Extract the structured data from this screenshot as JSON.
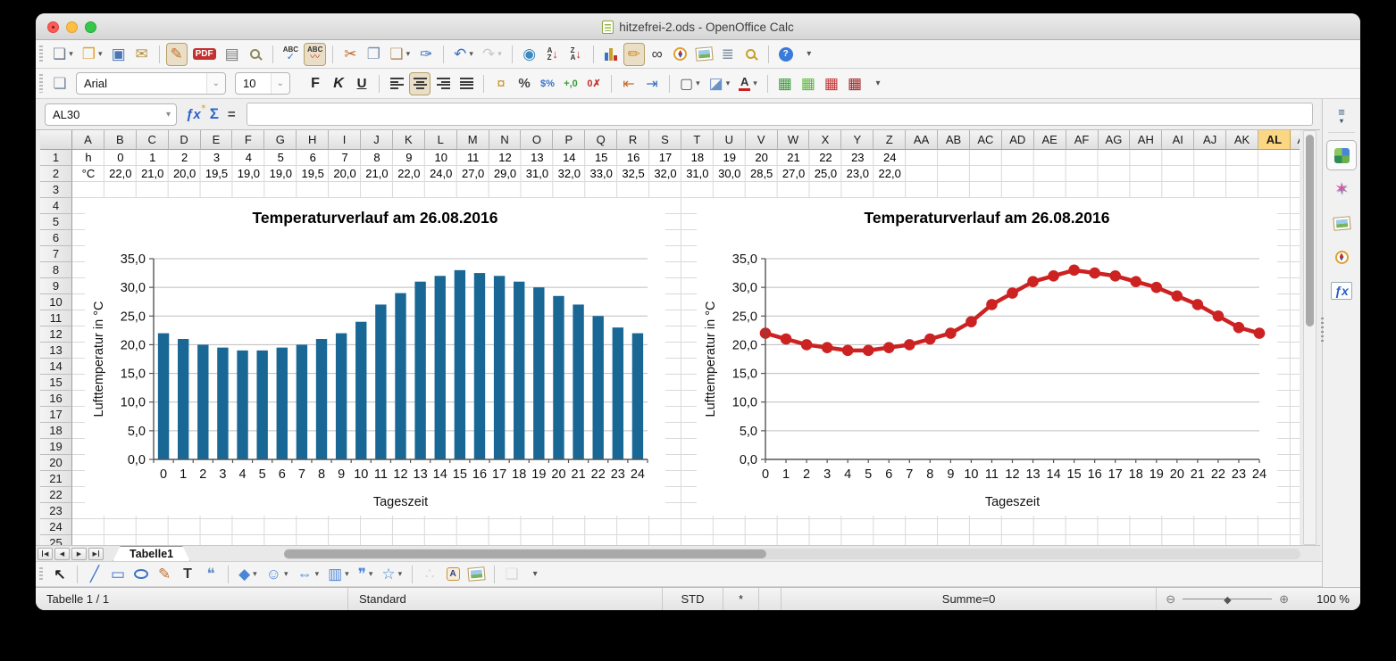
{
  "window": {
    "title": "hitzefrei-2.ods - OpenOffice Calc"
  },
  "colors": {
    "selected_column_bg": "#FBD783",
    "chart_bar": "#186795",
    "chart_line": "#CC2222",
    "traffic_close": "#FC5B57",
    "traffic_minimize": "#FDBE41",
    "traffic_zoom": "#34C84A"
  },
  "toolbar_standard": [
    {
      "name": "new-document-button",
      "icon": "new-document-icon",
      "kind": "glyph",
      "glyph": "❏",
      "color": "#6a7a8a",
      "dropdown": true
    },
    {
      "name": "open-button",
      "icon": "open-folder-icon",
      "kind": "glyph",
      "glyph": "❒",
      "color": "#e2a33a",
      "dropdown": true
    },
    {
      "name": "save-button",
      "icon": "save-floppy-icon",
      "kind": "glyph",
      "glyph": "▣",
      "color": "#4a76b8"
    },
    {
      "name": "email-button",
      "icon": "email-icon",
      "kind": "glyph",
      "glyph": "✉",
      "color": "#b8923a"
    },
    {
      "sep": true
    },
    {
      "name": "edit-mode-button",
      "icon": "edit-pencil-icon",
      "kind": "glyph",
      "glyph": "✎",
      "color": "#c07030",
      "toggled": true
    },
    {
      "name": "export-pdf-button",
      "icon": "pdf-icon",
      "kind": "chip",
      "text": "PDF",
      "bg": "#c43030",
      "color": "#ffffff"
    },
    {
      "name": "print-button",
      "icon": "printer-icon",
      "kind": "glyph",
      "glyph": "▤",
      "color": "#7a7a7a"
    },
    {
      "name": "print-preview-button",
      "icon": "print-preview-icon",
      "kind": "mag",
      "color": "#8a8a5a"
    },
    {
      "sep": true
    },
    {
      "name": "spellcheck-button",
      "icon": "spellcheck-icon",
      "kind": "abc",
      "label": "ABC",
      "mark": "✓",
      "markcolor": "#2a7ac8"
    },
    {
      "name": "auto-spellcheck-button",
      "icon": "auto-spellcheck-icon",
      "kind": "abc",
      "label": "ABC",
      "mark": "〰",
      "markcolor": "#c43030",
      "toggled": true
    },
    {
      "sep": true
    },
    {
      "name": "cut-button",
      "icon": "scissors-icon",
      "kind": "glyph",
      "glyph": "✂",
      "color": "#c06a2a"
    },
    {
      "name": "copy-button",
      "icon": "copy-icon",
      "kind": "glyph",
      "glyph": "❐",
      "color": "#7a90b0"
    },
    {
      "name": "paste-button",
      "icon": "clipboard-icon",
      "kind": "glyph",
      "glyph": "❑",
      "color": "#b09060",
      "dropdown": true
    },
    {
      "name": "format-paintbrush-button",
      "icon": "paintbrush-icon",
      "kind": "glyph",
      "glyph": "✑",
      "color": "#3a72c4"
    },
    {
      "sep": true
    },
    {
      "name": "undo-button",
      "icon": "undo-arrow-icon",
      "kind": "glyph",
      "glyph": "↶",
      "color": "#3a72c4",
      "dropdown": true
    },
    {
      "name": "redo-button",
      "icon": "redo-arrow-icon",
      "kind": "glyph",
      "glyph": "↷",
      "color": "#777777",
      "dropdown": true,
      "disabled": true
    },
    {
      "sep": true
    },
    {
      "name": "hyperlink-button",
      "icon": "globe-icon",
      "kind": "glyph",
      "glyph": "◉",
      "color": "#3a8ac0"
    },
    {
      "name": "sort-ascending-button",
      "icon": "sort-ascending-icon",
      "kind": "sort",
      "letters": [
        "A",
        "Z"
      ]
    },
    {
      "name": "sort-descending-button",
      "icon": "sort-descending-icon",
      "kind": "sort",
      "letters": [
        "Z",
        "A"
      ]
    },
    {
      "sep": true
    },
    {
      "name": "insert-chart-button",
      "icon": "chart-icon",
      "kind": "bars"
    },
    {
      "name": "show-draw-functions-button",
      "icon": "draw-pencil-icon",
      "kind": "glyph",
      "glyph": "✏",
      "color": "#d08a2a",
      "toggled": true
    },
    {
      "name": "find-replace-button",
      "icon": "binoculars-icon",
      "kind": "glyph",
      "glyph": "∞",
      "color": "#3a3a3a"
    },
    {
      "name": "navigator-button",
      "icon": "compass-icon",
      "kind": "compass"
    },
    {
      "name": "gallery-button",
      "icon": "gallery-icon",
      "kind": "photo"
    },
    {
      "name": "data-sources-button",
      "icon": "database-icon",
      "kind": "glyph",
      "glyph": "≣",
      "color": "#8090a0"
    },
    {
      "name": "zoom-button",
      "icon": "magnifier-icon",
      "kind": "mag",
      "color": "#c8a030"
    },
    {
      "sep": true
    },
    {
      "name": "help-button",
      "icon": "help-icon",
      "kind": "chip",
      "text": "?",
      "bg": "#3a7ad8",
      "color": "#ffffff",
      "round": true
    },
    {
      "name": "toolbar-overflow-button",
      "icon": "chevron-down-icon",
      "kind": "text",
      "text": "▾",
      "color": "#555555",
      "size": 10
    }
  ],
  "toolbar_formatting": [
    {
      "name": "styles-button",
      "icon": "stylist-icon",
      "kind": "glyph",
      "glyph": "❏",
      "color": "#7a8aa0"
    },
    {
      "name": "font-name-combo",
      "kind": "combo",
      "value": "Arial",
      "width": 168
    },
    {
      "name": "font-size-combo",
      "kind": "combo",
      "value": "10",
      "width": 62
    },
    {
      "gap": 10
    },
    {
      "name": "bold-button",
      "icon": "bold-icon",
      "kind": "text",
      "text": "F",
      "color": "#222222",
      "size": 16,
      "bold": true
    },
    {
      "name": "italic-button",
      "icon": "italic-icon",
      "kind": "text",
      "text": "K",
      "color": "#222222",
      "size": 16,
      "bold": true,
      "italic": true
    },
    {
      "name": "underline-button",
      "icon": "underline-icon",
      "kind": "text",
      "text": "U",
      "color": "#222222",
      "size": 15,
      "bold": true,
      "underline": true
    },
    {
      "sep": true
    },
    {
      "name": "align-left-button",
      "icon": "align-left-icon",
      "kind": "align",
      "variant": "left"
    },
    {
      "name": "align-center-button",
      "icon": "align-center-icon",
      "kind": "align",
      "variant": "center",
      "toggled": true
    },
    {
      "name": "align-right-button",
      "icon": "align-right-icon",
      "kind": "align",
      "variant": "right"
    },
    {
      "name": "align-justify-button",
      "icon": "align-justify-icon",
      "kind": "align",
      "variant": "justify"
    },
    {
      "sep": true
    },
    {
      "name": "currency-format-button",
      "icon": "currency-icon",
      "kind": "glyph",
      "glyph": "¤",
      "color": "#c8962a"
    },
    {
      "name": "percent-format-button",
      "icon": "percent-icon",
      "kind": "text",
      "text": "%",
      "color": "#444444",
      "size": 15,
      "bold": true
    },
    {
      "name": "standard-format-button",
      "icon": "standard-format-icon",
      "kind": "text",
      "text": "$%",
      "color": "#3a72c4",
      "size": 11,
      "bold": true
    },
    {
      "name": "add-decimal-button",
      "icon": "add-decimal-icon",
      "kind": "text",
      "text": "+,0",
      "color": "#3a9a3a",
      "size": 11,
      "bold": true
    },
    {
      "name": "delete-decimal-button",
      "icon": "delete-decimal-icon",
      "kind": "text",
      "text": "0✗",
      "color": "#c43030",
      "size": 11,
      "bold": true
    },
    {
      "sep": true
    },
    {
      "name": "decrease-indent-button",
      "icon": "decrease-indent-icon",
      "kind": "text",
      "text": "⇤",
      "color": "#c06a2a",
      "size": 16
    },
    {
      "name": "increase-indent-button",
      "icon": "increase-indent-icon",
      "kind": "text",
      "text": "⇥",
      "color": "#3a72c4",
      "size": 16
    },
    {
      "sep": true
    },
    {
      "name": "borders-button",
      "icon": "borders-icon",
      "kind": "text",
      "text": "▢",
      "color": "#555555",
      "size": 16,
      "dropdown": true
    },
    {
      "name": "background-color-button",
      "icon": "paint-bucket-icon",
      "kind": "glyph",
      "glyph": "◪",
      "color": "#6a92c8",
      "dropdown": true
    },
    {
      "name": "font-color-button",
      "icon": "font-color-icon",
      "kind": "underbar",
      "text": "A",
      "bar": "#cc2020",
      "dropdown": true
    },
    {
      "sep": true
    },
    {
      "name": "insert-row-button",
      "icon": "insert-row-icon",
      "kind": "glyph",
      "glyph": "▦",
      "color": "#3a9a3a"
    },
    {
      "name": "insert-column-button",
      "icon": "insert-column-icon",
      "kind": "glyph",
      "glyph": "▦",
      "color": "#58b838"
    },
    {
      "name": "delete-row-button",
      "icon": "delete-row-icon",
      "kind": "glyph",
      "glyph": "▦",
      "color": "#c43030"
    },
    {
      "name": "delete-column-button",
      "icon": "delete-column-icon",
      "kind": "glyph",
      "glyph": "▦",
      "color": "#a02020"
    },
    {
      "name": "toolbar-overflow-button",
      "icon": "chevron-down-icon",
      "kind": "text",
      "text": "▾",
      "color": "#555555",
      "size": 10
    }
  ],
  "toolbar_drawing": [
    {
      "name": "select-button",
      "icon": "cursor-arrow-icon",
      "kind": "text",
      "text": "↖",
      "color": "#222222",
      "size": 16,
      "bold": true
    },
    {
      "sep": true
    },
    {
      "name": "line-button",
      "icon": "line-icon",
      "kind": "glyph",
      "glyph": "╱",
      "color": "#3a72c4"
    },
    {
      "name": "rectangle-button",
      "icon": "rectangle-icon",
      "kind": "glyph",
      "glyph": "▭",
      "color": "#3a72c4"
    },
    {
      "name": "ellipse-button",
      "icon": "ellipse-icon",
      "kind": "ellipse"
    },
    {
      "name": "freeform-button",
      "icon": "freeform-pencil-icon",
      "kind": "glyph",
      "glyph": "✎",
      "color": "#c07030"
    },
    {
      "name": "text-button",
      "icon": "text-icon",
      "kind": "text",
      "text": "T",
      "color": "#333333",
      "size": 16,
      "bold": true
    },
    {
      "name": "callout-button",
      "icon": "callout-icon",
      "kind": "glyph",
      "glyph": "❝",
      "color": "#6a92c8"
    },
    {
      "sep": true
    },
    {
      "name": "basic-shapes-button",
      "icon": "diamond-shape-icon",
      "kind": "glyph",
      "glyph": "◆",
      "color": "#4a86d8",
      "dropdown": true
    },
    {
      "name": "symbol-shapes-button",
      "icon": "smiley-icon",
      "kind": "glyph",
      "glyph": "☺",
      "color": "#4a86d8",
      "dropdown": true
    },
    {
      "name": "block-arrows-button",
      "icon": "block-arrow-icon",
      "kind": "glyph",
      "glyph": "⇔",
      "color": "#4a86d8",
      "dropdown": true
    },
    {
      "name": "flowchart-button",
      "icon": "flowchart-icon",
      "kind": "glyph",
      "glyph": "▥",
      "color": "#4a86d8",
      "dropdown": true
    },
    {
      "name": "callouts-button",
      "icon": "speech-bubble-icon",
      "kind": "glyph",
      "glyph": "❞",
      "color": "#4a86d8",
      "dropdown": true
    },
    {
      "name": "stars-button",
      "icon": "star-icon",
      "kind": "glyph",
      "glyph": "☆",
      "color": "#4a86d8",
      "dropdown": true
    },
    {
      "sep": true
    },
    {
      "name": "edit-points-button",
      "icon": "points-icon",
      "kind": "glyph",
      "glyph": "∴",
      "color": "#999999",
      "disabled": true
    },
    {
      "name": "fontwork-button",
      "icon": "fontwork-icon",
      "kind": "chip",
      "text": "A",
      "bg": "#f8edd8",
      "color": "#28408a",
      "border": "#c89038"
    },
    {
      "name": "insert-picture-button",
      "icon": "picture-icon",
      "kind": "photo"
    },
    {
      "sep": true
    },
    {
      "name": "extrusion-button",
      "icon": "extrusion-icon",
      "kind": "glyph",
      "glyph": "❑",
      "color": "#aaaaaa",
      "disabled": true
    },
    {
      "name": "toolbar-overflow-button",
      "icon": "chevron-down-icon",
      "kind": "text",
      "text": "▾",
      "color": "#555555",
      "size": 10
    }
  ],
  "formula_bar": {
    "cell_reference": "AL30",
    "name_box_caret_icon": "▾",
    "function_wizard_icon": "ƒx",
    "sum_icon": "Σ",
    "equals_icon": "=",
    "formula_value": ""
  },
  "grid": {
    "columns": [
      "A",
      "B",
      "C",
      "D",
      "E",
      "F",
      "G",
      "H",
      "I",
      "J",
      "K",
      "L",
      "M",
      "N",
      "O",
      "P",
      "Q",
      "R",
      "S",
      "T",
      "U",
      "V",
      "W",
      "X",
      "Y",
      "Z",
      "AA",
      "AB",
      "AC",
      "AD",
      "AE",
      "AF",
      "AG",
      "AH",
      "AI",
      "AJ",
      "AK",
      "AL",
      "AM"
    ],
    "selected_column": "AL",
    "row_labels": [
      "1",
      "2",
      "3",
      "4",
      "5",
      "6",
      "7",
      "8",
      "9",
      "10",
      "11",
      "12",
      "13",
      "14",
      "15",
      "16",
      "17",
      "18",
      "19",
      "20",
      "21",
      "22",
      "23",
      "24",
      "25"
    ],
    "row1": [
      "h",
      "0",
      "1",
      "2",
      "3",
      "4",
      "5",
      "6",
      "7",
      "8",
      "9",
      "10",
      "11",
      "12",
      "13",
      "14",
      "15",
      "16",
      "17",
      "18",
      "19",
      "20",
      "21",
      "22",
      "23",
      "24"
    ],
    "row2": [
      "°C",
      "22,0",
      "21,0",
      "20,0",
      "19,5",
      "19,0",
      "19,0",
      "19,5",
      "20,0",
      "21,0",
      "22,0",
      "24,0",
      "27,0",
      "29,0",
      "31,0",
      "32,0",
      "33,0",
      "32,5",
      "32,0",
      "31,0",
      "30,0",
      "28,5",
      "27,0",
      "25,0",
      "23,0",
      "22,0"
    ]
  },
  "chart_data": [
    {
      "type": "bar",
      "title": "Temperaturverlauf am 26.08.2016",
      "categories": [
        "0",
        "1",
        "2",
        "3",
        "4",
        "5",
        "6",
        "7",
        "8",
        "9",
        "10",
        "11",
        "12",
        "13",
        "14",
        "15",
        "16",
        "17",
        "18",
        "19",
        "20",
        "21",
        "22",
        "23",
        "24"
      ],
      "values": [
        22,
        21,
        20,
        19.5,
        19,
        19,
        19.5,
        20,
        21,
        22,
        24,
        27,
        29,
        31,
        32,
        33,
        32.5,
        32,
        31,
        30,
        28.5,
        27,
        25,
        23,
        22
      ],
      "xlabel": "Tageszeit",
      "ylabel": "Lufttemperatur  in  °C",
      "ylim": [
        0,
        35
      ],
      "ytick_step": 5,
      "ytick_labels": [
        "0,0",
        "5,0",
        "10,0",
        "15,0",
        "20,0",
        "25,0",
        "30,0",
        "35,0"
      ],
      "grid": true,
      "color": "#186795"
    },
    {
      "type": "line",
      "title": "Temperaturverlauf am 26.08.2016",
      "categories": [
        "0",
        "1",
        "2",
        "3",
        "4",
        "5",
        "6",
        "7",
        "8",
        "9",
        "10",
        "11",
        "12",
        "13",
        "14",
        "15",
        "16",
        "17",
        "18",
        "19",
        "20",
        "21",
        "22",
        "23",
        "24"
      ],
      "values": [
        22,
        21,
        20,
        19.5,
        19,
        19,
        19.5,
        20,
        21,
        22,
        24,
        27,
        29,
        31,
        32,
        33,
        32.5,
        32,
        31,
        30,
        28.5,
        27,
        25,
        23,
        22
      ],
      "xlabel": "Tageszeit",
      "ylabel": "Lufttemperatur  in  °C",
      "ylim": [
        0,
        35
      ],
      "ytick_step": 5,
      "ytick_labels": [
        "0,0",
        "5,0",
        "10,0",
        "15,0",
        "20,0",
        "25,0",
        "30,0",
        "35,0"
      ],
      "grid": true,
      "color": "#CC2222"
    }
  ],
  "sheet_tabs": {
    "nav": [
      {
        "name": "first-sheet-button",
        "icon": "first-sheet-icon",
        "label": "◀",
        "bar": "left"
      },
      {
        "name": "previous-sheet-button",
        "icon": "previous-sheet-icon",
        "label": "◀"
      },
      {
        "name": "next-sheet-button",
        "icon": "next-sheet-icon",
        "label": "▶"
      },
      {
        "name": "last-sheet-button",
        "icon": "last-sheet-icon",
        "label": "▶",
        "bar": "right"
      }
    ],
    "tabs": [
      {
        "label": "Tabelle1",
        "active": true
      }
    ]
  },
  "status_bar": {
    "sheet_info": "Tabelle 1 / 1",
    "page_style": "Standard",
    "selection_mode": "STD",
    "modified_flag": "*",
    "sum": "Summe=0",
    "zoom_out_icon": "⊖",
    "zoom_in_icon": "⊕",
    "zoom_thumb_icon": "◆",
    "zoom_level": "100 %"
  },
  "sidebar": {
    "menu_icon": "≡",
    "items": [
      {
        "name": "sidebar-properties-button",
        "icon": "properties-cube-icon",
        "kind": "cube",
        "selected": true
      },
      {
        "name": "sidebar-styles-button",
        "icon": "styles-star-icon",
        "kind": "star",
        "glyph": "✶"
      },
      {
        "name": "sidebar-gallery-button",
        "icon": "gallery-photo-icon",
        "kind": "photo"
      },
      {
        "name": "sidebar-navigator-button",
        "icon": "navigator-compass-icon",
        "kind": "compass"
      },
      {
        "name": "sidebar-functions-button",
        "icon": "functions-fx-icon",
        "kind": "fx",
        "glyph": "ƒx"
      }
    ]
  }
}
